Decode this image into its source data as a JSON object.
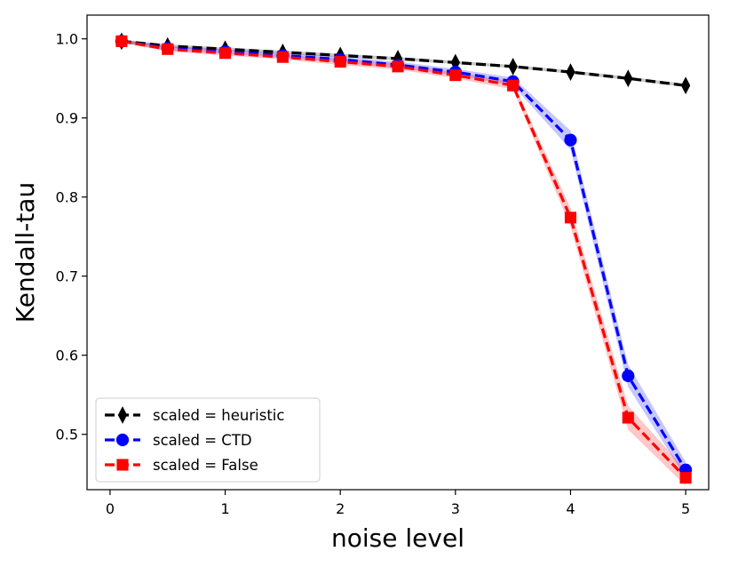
{
  "chart_data": {
    "type": "line",
    "title": "",
    "xlabel": "noise level",
    "ylabel": "Kendall-tau",
    "xlim": [
      -0.2,
      5.2
    ],
    "ylim": [
      0.43,
      1.03
    ],
    "xticks": [
      0,
      1,
      2,
      3,
      4,
      5
    ],
    "xtick_labels": [
      "0",
      "1",
      "2",
      "3",
      "4",
      "5"
    ],
    "yticks": [
      0.5,
      0.6,
      0.7,
      0.8,
      0.9,
      1.0
    ],
    "ytick_labels": [
      "0.5",
      "0.6",
      "0.7",
      "0.8",
      "0.9",
      "1.0"
    ],
    "grid": false,
    "legend_position": "lower-left",
    "x": [
      0.1,
      0.5,
      1.0,
      1.5,
      2.0,
      2.5,
      3.0,
      3.5,
      4.0,
      4.5,
      5.0
    ],
    "series": [
      {
        "name": "scaled = heuristic",
        "color": "#000000",
        "marker": "thin-diamond",
        "linestyle": "dashed",
        "values": [
          0.997,
          0.991,
          0.987,
          0.983,
          0.979,
          0.975,
          0.97,
          0.965,
          0.958,
          0.95,
          0.941
        ],
        "band": [
          0.002,
          0.002,
          0.002,
          0.002,
          0.002,
          0.002,
          0.002,
          0.002,
          0.002,
          0.002,
          0.002
        ]
      },
      {
        "name": "scaled = CTD",
        "color": "#0000ff",
        "marker": "circle",
        "linestyle": "dashed",
        "values": [
          0.997,
          0.988,
          0.984,
          0.979,
          0.974,
          0.967,
          0.958,
          0.946,
          0.872,
          0.574,
          0.455
        ],
        "band": [
          0.002,
          0.003,
          0.003,
          0.003,
          0.004,
          0.004,
          0.004,
          0.005,
          0.012,
          0.014,
          0.01
        ]
      },
      {
        "name": "scaled = False",
        "color": "#ff0000",
        "marker": "square",
        "linestyle": "dashed",
        "values": [
          0.997,
          0.987,
          0.982,
          0.977,
          0.971,
          0.965,
          0.954,
          0.941,
          0.774,
          0.521,
          0.445
        ],
        "band": [
          0.002,
          0.003,
          0.003,
          0.003,
          0.004,
          0.004,
          0.004,
          0.005,
          0.012,
          0.015,
          0.01
        ]
      }
    ]
  }
}
